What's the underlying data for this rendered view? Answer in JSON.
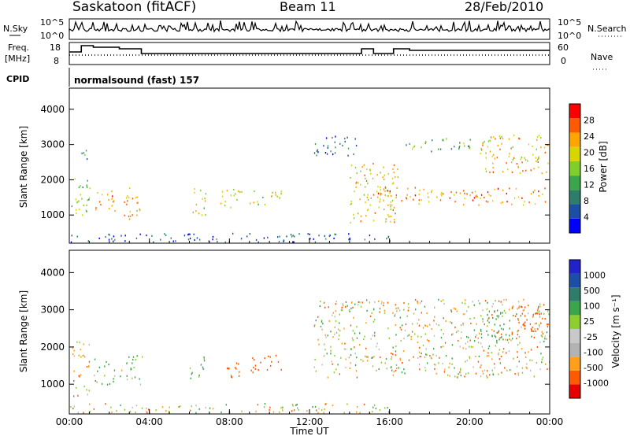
{
  "header": {
    "station": "Saskatoon (fitACF)",
    "beam": "Beam 11",
    "date": "28/Feb/2010"
  },
  "strips": {
    "nsky_label": "N.Sky",
    "nsky_ticks": [
      "10^5",
      "10^0"
    ],
    "nsearch_label": "N.Search",
    "nsearch_ticks": [
      "10^5",
      "10^0"
    ],
    "freq_label_1": "Freq.",
    "freq_label_2": "[MHz]",
    "freq_ticks": [
      "18",
      "8"
    ],
    "nave_label": "Nave",
    "nave_ticks": [
      "60",
      "0"
    ],
    "cpid_label": "CPID",
    "cpid_value": "normalsound (fast) 157"
  },
  "colors": {
    "power_scale": [
      "#0000ff",
      "#1c4ea8",
      "#2e7d6b",
      "#3aa64a",
      "#7fcf2a",
      "#d7d700",
      "#ffa500",
      "#ff5a00",
      "#ff0000"
    ],
    "velocity_scale": [
      "#e60000",
      "#ff5a00",
      "#ff9f1a",
      "#b3b3b3",
      "#c9c9c9",
      "#8ccf2f",
      "#3aa64a",
      "#2e7d6b",
      "#1c4ea8",
      "#2222cc"
    ],
    "ground_scatter": "#bdbdbd"
  },
  "chart_data": [
    {
      "type": "heatmap",
      "panel": "power",
      "xlabel": "",
      "ylabel": "Slant Range [km]",
      "xlim": [
        "00:00",
        "24:00"
      ],
      "ylim": [
        200,
        4600
      ],
      "y_ticks": [
        "4000",
        "3000",
        "2000",
        "1000"
      ],
      "colorbar_label": "Power [dB]",
      "colorbar_ticks": [
        "28",
        "24",
        "20",
        "16",
        "12",
        "8",
        "4"
      ],
      "colorbar_range": [
        0,
        32
      ],
      "grid": false,
      "scatter_regions": [
        {
          "t": [
            0.1,
            1.0
          ],
          "range": [
            900,
            2200
          ],
          "power": 16
        },
        {
          "t": [
            1.3,
            2.3
          ],
          "range": [
            1000,
            1700
          ],
          "power": 24
        },
        {
          "t": [
            2.6,
            3.7
          ],
          "range": [
            900,
            1800
          ],
          "power": 22
        },
        {
          "t": [
            0.4,
            1.0
          ],
          "range": [
            2600,
            3000
          ],
          "power": 10
        },
        {
          "t": [
            6.0,
            6.8
          ],
          "range": [
            1000,
            1800
          ],
          "power": 18
        },
        {
          "t": [
            7.5,
            8.6
          ],
          "range": [
            1200,
            1800
          ],
          "power": 20
        },
        {
          "t": [
            9.0,
            10.6
          ],
          "range": [
            1300,
            1800
          ],
          "power": 18
        },
        {
          "t": [
            12.2,
            14.4
          ],
          "range": [
            2700,
            3300
          ],
          "power": 8
        },
        {
          "t": [
            14.0,
            16.4
          ],
          "range": [
            800,
            2500
          ],
          "power": 20
        },
        {
          "t": [
            15.0,
            24.0
          ],
          "range": [
            1300,
            1800
          ],
          "power": 24
        },
        {
          "t": [
            16.8,
            20.2
          ],
          "range": [
            2800,
            3200
          ],
          "power": 14
        },
        {
          "t": [
            20.5,
            24.0
          ],
          "range": [
            2200,
            3300
          ],
          "power": 22
        },
        {
          "t": [
            0.0,
            16.0
          ],
          "range": [
            250,
            500
          ],
          "power": 6
        }
      ]
    },
    {
      "type": "heatmap",
      "panel": "velocity",
      "xlabel": "Time UT",
      "ylabel": "Slant Range [km]",
      "x_ticks": [
        "00:00",
        "04:00",
        "08:00",
        "12:00",
        "16:00",
        "20:00",
        "00:00"
      ],
      "xlim": [
        "00:00",
        "24:00"
      ],
      "ylim": [
        200,
        4600
      ],
      "y_ticks": [
        "4000",
        "3000",
        "2000",
        "1000"
      ],
      "colorbar_label": "Velocity [m s⁻¹]",
      "colorbar_ticks": [
        "1000",
        "500",
        "100",
        "25",
        "-25",
        "-100",
        "-500",
        "-1000"
      ],
      "grid": false,
      "scatter_regions": [
        {
          "t": [
            0.1,
            1.0
          ],
          "range": [
            700,
            2200
          ],
          "velocity": 0
        },
        {
          "t": [
            1.2,
            2.3
          ],
          "range": [
            1000,
            1700
          ],
          "velocity": 150
        },
        {
          "t": [
            2.5,
            3.7
          ],
          "range": [
            1000,
            1800
          ],
          "velocity": 120
        },
        {
          "t": [
            6.0,
            6.8
          ],
          "range": [
            1100,
            1800
          ],
          "velocity": 150
        },
        {
          "t": [
            7.5,
            8.6
          ],
          "range": [
            1200,
            1700
          ],
          "velocity": -250
        },
        {
          "t": [
            9.0,
            10.6
          ],
          "range": [
            1300,
            1800
          ],
          "velocity": -250
        },
        {
          "t": [
            12.2,
            24.0
          ],
          "range": [
            1200,
            3300
          ],
          "velocity": 0
        },
        {
          "t": [
            20.5,
            22.2
          ],
          "range": [
            2200,
            3000
          ],
          "velocity": 300
        },
        {
          "t": [
            22.0,
            24.0
          ],
          "range": [
            2300,
            3200
          ],
          "velocity": -250
        },
        {
          "t": [
            0.0,
            16.0
          ],
          "range": [
            250,
            500
          ],
          "velocity": 0
        }
      ]
    },
    {
      "type": "line",
      "panel": "nsky-nsearch",
      "xlim": [
        "00:00",
        "24:00"
      ],
      "series": []
    },
    {
      "type": "line",
      "panel": "freq-nave",
      "xlim": [
        "00:00",
        "24:00"
      ],
      "series": []
    }
  ]
}
